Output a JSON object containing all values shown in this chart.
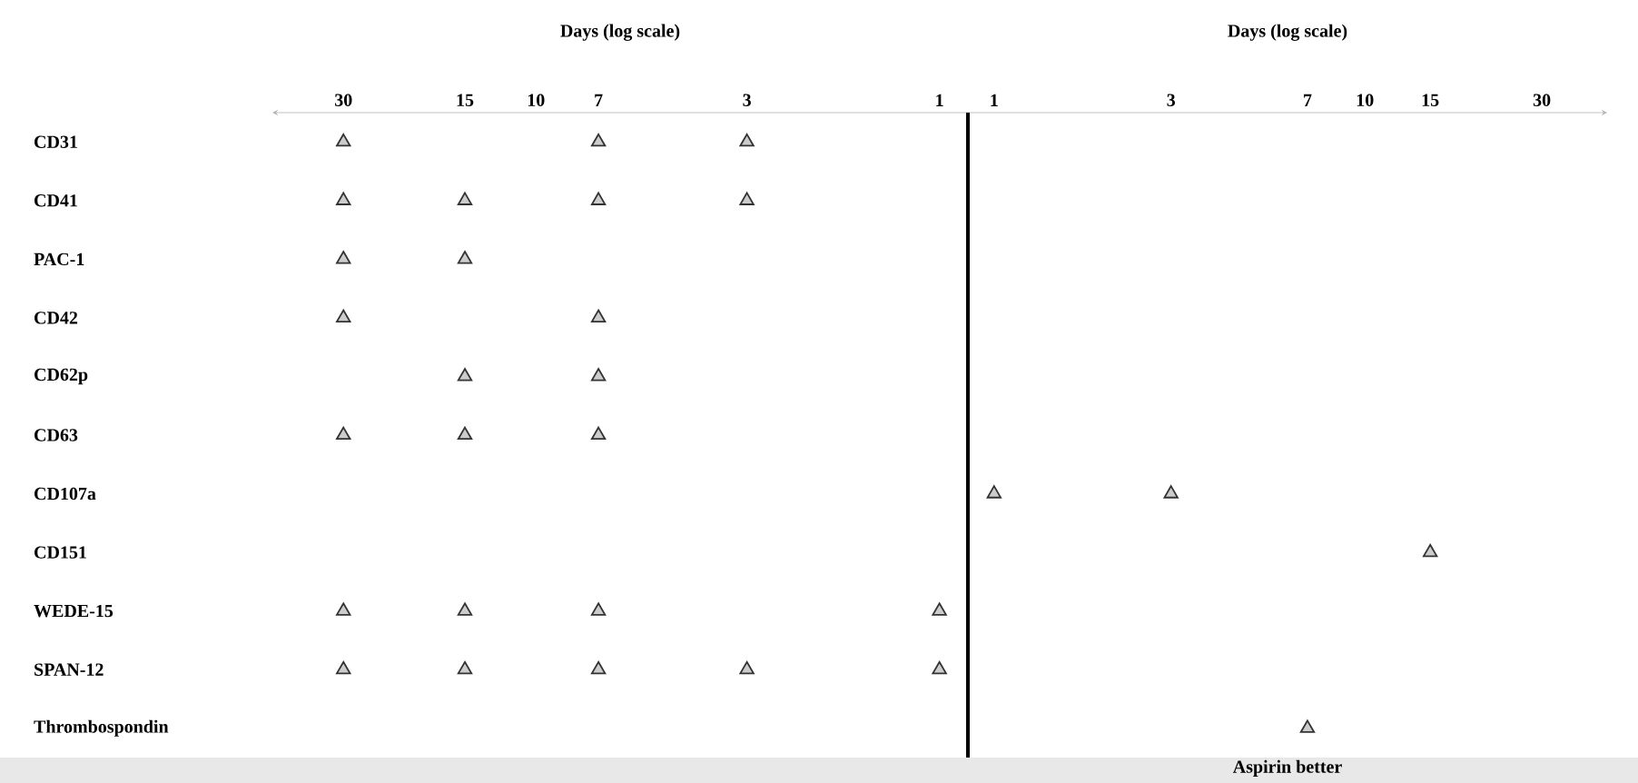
{
  "chart_data": [
    {
      "type": "scatter",
      "orientation": "horizontal",
      "title": "Days (log scale)",
      "log": "x",
      "marker": "triangle",
      "categories": [
        "CD31",
        "CD41",
        "PAC-1",
        "CD42",
        "CD62p",
        "CD63",
        "CD107a",
        "CD151",
        "WEDE-15",
        "SPAN-12",
        "Thrombospondin"
      ],
      "xlim": [
        45,
        0.85
      ],
      "xticks": [
        30,
        15,
        10,
        7,
        3,
        1
      ],
      "series": [
        {
          "color": "#333333",
          "values": [
            30,
            30,
            30,
            30,
            null,
            30,
            null,
            null,
            30,
            30,
            null
          ]
        },
        {
          "color": "#333333",
          "values": [
            null,
            15,
            15,
            null,
            15,
            15,
            null,
            null,
            15,
            15,
            null
          ]
        },
        {
          "color": "#333333",
          "values": [
            7,
            7,
            null,
            7,
            7,
            7,
            null,
            null,
            7,
            7,
            null
          ]
        },
        {
          "color": "#333333",
          "values": [
            3,
            3,
            null,
            null,
            null,
            null,
            null,
            null,
            null,
            3,
            null
          ]
        },
        {
          "color": "#333333",
          "values": [
            null,
            null,
            null,
            null,
            null,
            null,
            null,
            null,
            1,
            1,
            null
          ]
        }
      ]
    },
    {
      "type": "scatter",
      "orientation": "horizontal",
      "title": "Days (log scale)",
      "log": "x",
      "marker": "triangle",
      "tick_labels": "x",
      "categories": [
        null,
        null,
        null,
        null,
        null,
        null,
        null,
        null,
        null,
        null,
        null
      ],
      "xlim": [
        0.85,
        45
      ],
      "xticks": [
        1,
        3,
        7,
        10,
        15,
        30
      ],
      "annotations": [
        "Aspirin better"
      ],
      "series": [
        {
          "color": "#333333",
          "values": [
            null,
            null,
            null,
            null,
            null,
            null,
            1,
            null,
            null,
            null,
            null
          ]
        },
        {
          "color": "#333333",
          "values": [
            null,
            null,
            null,
            null,
            null,
            null,
            3,
            null,
            null,
            null,
            null
          ]
        },
        {
          "color": "#333333",
          "values": [
            null,
            null,
            null,
            null,
            null,
            null,
            null,
            null,
            null,
            null,
            7
          ]
        },
        {
          "color": "#333333",
          "values": [
            null,
            null,
            null,
            null,
            null,
            null,
            null,
            15,
            null,
            null,
            null
          ]
        }
      ]
    }
  ]
}
